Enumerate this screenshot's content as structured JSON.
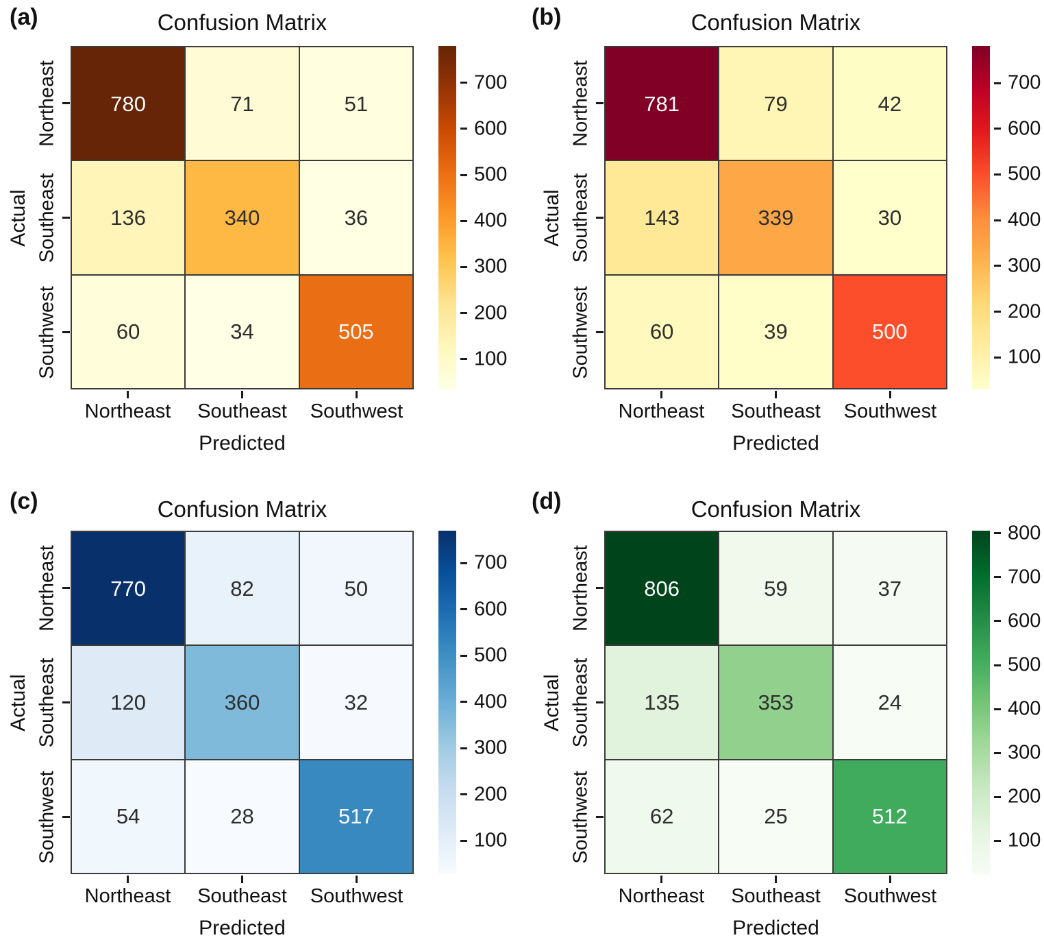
{
  "figure": {
    "background": "#ffffff"
  },
  "text_colors": {
    "annotation_dark": "#2e2e2e",
    "annotation_light": "#fafafa",
    "axis": "#111111"
  },
  "grid": {
    "line_color": "#3b3b3b"
  },
  "chart_data": [
    {
      "type": "heatmap",
      "panel_label": "(a)",
      "title": "Confusion Matrix",
      "xlabel": "Predicted",
      "ylabel": "Actual",
      "x_categories": [
        "Northeast",
        "Southeast",
        "Southwest"
      ],
      "y_categories": [
        "Northeast",
        "Southeast",
        "Southwest"
      ],
      "values": [
        [
          780,
          71,
          51
        ],
        [
          136,
          340,
          36
        ],
        [
          60,
          34,
          505
        ]
      ],
      "colormap": "YlOrBr",
      "colormap_stops": [
        "#ffffe5",
        "#fff7bc",
        "#fee391",
        "#fec44f",
        "#fe9929",
        "#ec7014",
        "#cc4c02",
        "#993404",
        "#662506"
      ],
      "colorbar_ticks": [
        100,
        200,
        300,
        400,
        500,
        600,
        700
      ],
      "legend_position": "right",
      "grid_on": true
    },
    {
      "type": "heatmap",
      "panel_label": "(b)",
      "title": "Confusion Matrix",
      "xlabel": "Predicted",
      "ylabel": "Actual",
      "x_categories": [
        "Northeast",
        "Southeast",
        "Southwest"
      ],
      "y_categories": [
        "Northeast",
        "Southeast",
        "Southwest"
      ],
      "values": [
        [
          781,
          79,
          42
        ],
        [
          143,
          339,
          30
        ],
        [
          60,
          39,
          500
        ]
      ],
      "colormap": "YlOrRd",
      "colormap_stops": [
        "#ffffcc",
        "#ffeda0",
        "#fed976",
        "#feb24c",
        "#fd8d3c",
        "#fc4e2a",
        "#e31a1c",
        "#bd0026",
        "#800026"
      ],
      "colorbar_ticks": [
        100,
        200,
        300,
        400,
        500,
        600,
        700
      ],
      "legend_position": "right",
      "grid_on": true
    },
    {
      "type": "heatmap",
      "panel_label": "(c)",
      "title": "Confusion Matrix",
      "xlabel": "Predicted",
      "ylabel": "Actual",
      "x_categories": [
        "Northeast",
        "Southeast",
        "Southwest"
      ],
      "y_categories": [
        "Northeast",
        "Southeast",
        "Southwest"
      ],
      "values": [
        [
          770,
          82,
          50
        ],
        [
          120,
          360,
          32
        ],
        [
          54,
          28,
          517
        ]
      ],
      "colormap": "Blues",
      "colormap_stops": [
        "#f7fbff",
        "#deebf7",
        "#c6dbef",
        "#9ecae1",
        "#6baed6",
        "#4292c6",
        "#2171b5",
        "#08519c",
        "#08306b"
      ],
      "colorbar_ticks": [
        100,
        200,
        300,
        400,
        500,
        600,
        700
      ],
      "legend_position": "right",
      "grid_on": true
    },
    {
      "type": "heatmap",
      "panel_label": "(d)",
      "title": "Confusion Matrix",
      "xlabel": "Predicted",
      "ylabel": "Actual",
      "x_categories": [
        "Northeast",
        "Southeast",
        "Southwest"
      ],
      "y_categories": [
        "Northeast",
        "Southeast",
        "Southwest"
      ],
      "values": [
        [
          806,
          59,
          37
        ],
        [
          135,
          353,
          24
        ],
        [
          62,
          25,
          512
        ]
      ],
      "colormap": "Greens",
      "colormap_stops": [
        "#f7fcf5",
        "#e5f5e0",
        "#c7e9c0",
        "#a1d99b",
        "#74c476",
        "#41ab5d",
        "#238b45",
        "#006d2c",
        "#00441b"
      ],
      "colorbar_ticks": [
        100,
        200,
        300,
        400,
        500,
        600,
        700,
        800
      ],
      "legend_position": "right",
      "grid_on": true
    }
  ]
}
